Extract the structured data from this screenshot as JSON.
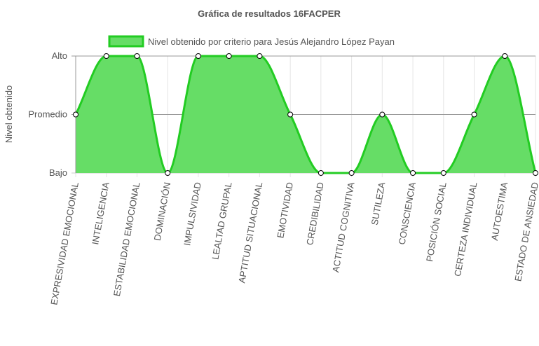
{
  "chart_data": {
    "type": "area",
    "title": "Gráfica de resultados 16FACPER",
    "ylabel": "Nivel obtenido",
    "xlabel": "",
    "y_levels": [
      "Bajo",
      "Promedio",
      "Alto"
    ],
    "ylim": [
      0,
      2
    ],
    "categories": [
      "EXPRESIVIDAD EMOCIONAL",
      "INTELIGENCIA",
      "ESTABILIDAD EMOCIONAL",
      "DOMINACIÓN",
      "IMPULSIVIDAD",
      "LEALTAD GRUPAL",
      "APTITUD SITUACIONAL",
      "EMOTIVIDAD",
      "CREDIBILIDAD",
      "ACTITUD COGNITIVA",
      "SUTILEZA",
      "CONSCIENCIA",
      "POSICIÓN SOCIAL",
      "CERTEZA INDIVIDUAL",
      "AUTOESTIMA",
      "ESTADO DE ANSIEDAD"
    ],
    "series": [
      {
        "name": "Nivel obtenido por criterio para Jesús Alejandro López Payan",
        "values": [
          1,
          2,
          2,
          0,
          2,
          2,
          2,
          1,
          0,
          0,
          1,
          0,
          0,
          1,
          2,
          0
        ],
        "color": "#22cc22",
        "fill": "#66dd66"
      }
    ],
    "legend_position": "top",
    "grid": true
  }
}
